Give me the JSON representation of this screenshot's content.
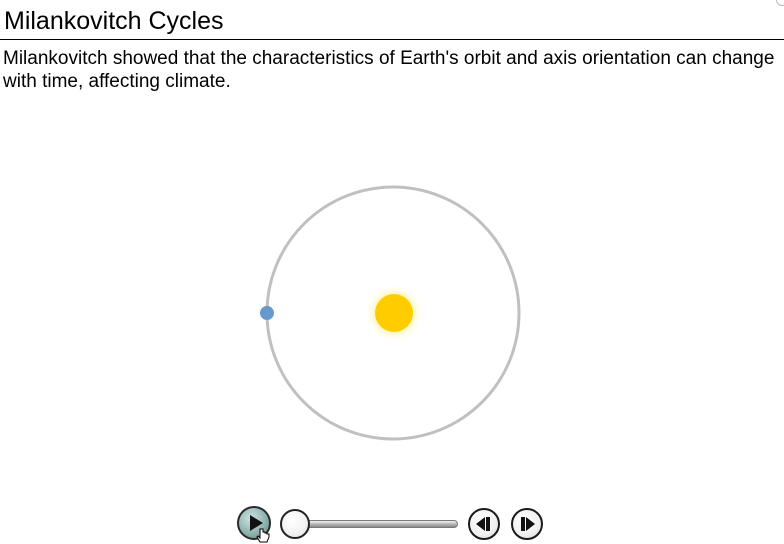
{
  "header": {
    "title": "Milankovitch Cycles"
  },
  "main": {
    "description": "Milankovitch showed that the characteristics of Earth's orbit and axis orientation can change with time, affecting climate."
  },
  "animation": {
    "colors": {
      "orbit": "#c0c0c0",
      "sun": "#ffcc00",
      "sun_glow": "#fff8c8",
      "earth": "#6699cc"
    }
  },
  "controls": {
    "play_icon": "play-icon",
    "step_back_icon": "step-back-icon",
    "step_forward_icon": "step-forward-icon",
    "progress": 0
  }
}
